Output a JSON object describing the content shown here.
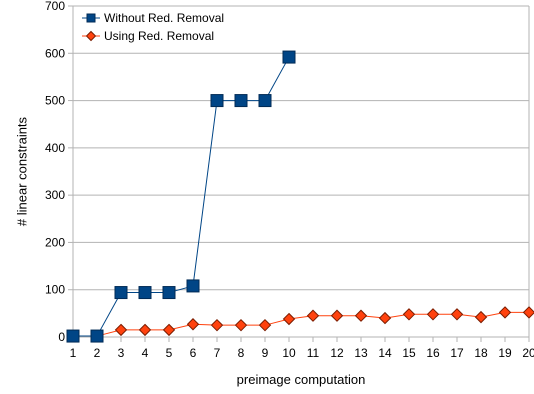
{
  "chart_data": {
    "type": "line",
    "xlabel": "preimage computation",
    "ylabel": "# linear constraints",
    "ylim": [
      0,
      700
    ],
    "yticks": [
      0,
      100,
      200,
      300,
      400,
      500,
      600,
      700
    ],
    "x": [
      1,
      2,
      3,
      4,
      5,
      6,
      7,
      8,
      9,
      10,
      11,
      12,
      13,
      14,
      15,
      16,
      17,
      18,
      19,
      20
    ],
    "grid": "horizontal",
    "legend_position": "top-left",
    "series": [
      {
        "name": "Without Red. Removal",
        "color": "#004586",
        "marker": "square",
        "values": [
          2,
          2,
          94,
          94,
          94,
          108,
          500,
          500,
          500,
          592,
          null,
          null,
          null,
          null,
          null,
          null,
          null,
          null,
          null,
          null
        ]
      },
      {
        "name": "Using Red. Removal",
        "color": "#ff420e",
        "marker": "diamond",
        "values": [
          2,
          2,
          15,
          15,
          15,
          27,
          25,
          25,
          25,
          38,
          45,
          45,
          45,
          40,
          48,
          48,
          48,
          42,
          52,
          52
        ]
      }
    ]
  }
}
